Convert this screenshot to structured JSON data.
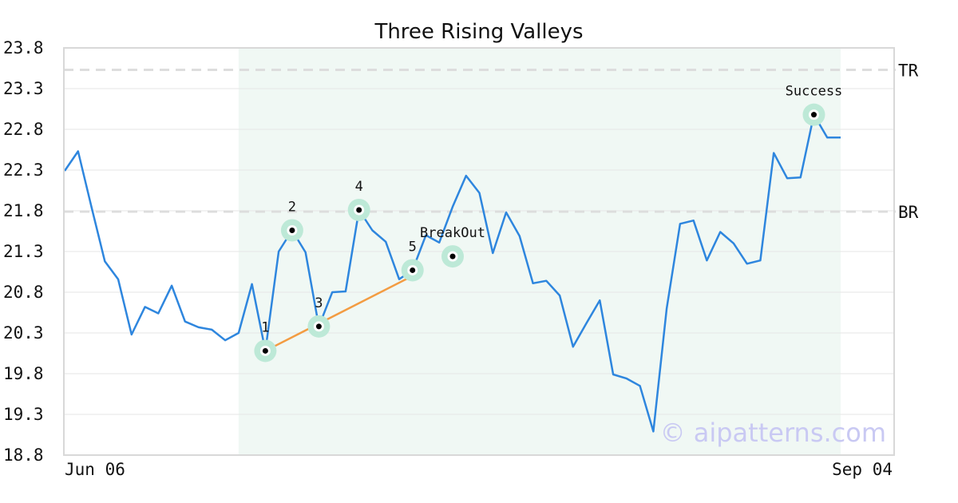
{
  "chart_data": {
    "type": "line",
    "title": "Three Rising Valleys",
    "xlabel": "",
    "ylabel": "",
    "ylim": [
      18.8,
      23.8
    ],
    "y_ticks": [
      "23.8",
      "23.3",
      "22.8",
      "22.3",
      "21.8",
      "21.3",
      "20.8",
      "20.3",
      "19.8",
      "19.3",
      "18.8"
    ],
    "x_tick_labels": [
      "Jun 06",
      "Sep 04"
    ],
    "grid": "horizontal",
    "series": [
      {
        "color": "#2e86de",
        "values": [
          22.29,
          22.53,
          21.85,
          21.18,
          20.96,
          20.28,
          20.62,
          20.54,
          20.88,
          20.44,
          20.37,
          20.34,
          20.21,
          20.3,
          20.9,
          20.08,
          21.3,
          21.56,
          21.29,
          20.38,
          20.8,
          20.81,
          21.81,
          21.56,
          21.42,
          20.96,
          21.07,
          21.5,
          21.41,
          21.85,
          22.23,
          22.02,
          21.28,
          21.78,
          21.49,
          20.91,
          20.94,
          20.76,
          20.13,
          20.42,
          20.7,
          19.79,
          19.74,
          19.65,
          19.09,
          20.6,
          21.64,
          21.68,
          21.19,
          21.54,
          21.4,
          21.15,
          21.19,
          22.51,
          22.2,
          22.21,
          22.98,
          22.7,
          22.7
        ]
      }
    ],
    "pattern_region": {
      "start_index": 13,
      "end_index": 58
    },
    "levels": [
      {
        "label": "TR",
        "value": 23.53
      },
      {
        "label": "BR",
        "value": 21.79
      }
    ],
    "trendline": {
      "from_index": 15,
      "to_index": 26,
      "from_value": 20.08,
      "to_value": 21.0,
      "color": "#f39c42"
    },
    "annotations": [
      {
        "label": "1",
        "index": 15,
        "value": 20.08
      },
      {
        "label": "2",
        "index": 17,
        "value": 21.56
      },
      {
        "label": "3",
        "index": 19,
        "value": 20.38
      },
      {
        "label": "4",
        "index": 22,
        "value": 21.81
      },
      {
        "label": "5",
        "index": 26,
        "value": 21.07
      },
      {
        "label": "BreakOut",
        "index": 29,
        "value": 21.24
      },
      {
        "label": "Success",
        "index": 56,
        "value": 22.98
      }
    ]
  },
  "watermark": "© aipatterns.com",
  "colors": {
    "line": "#2e86de",
    "region": "#f0f8f4",
    "marker_halo": "#bde9d7",
    "grid": "#e6e6e6",
    "level": "#dddddd",
    "frame": "#d8d8d8"
  }
}
